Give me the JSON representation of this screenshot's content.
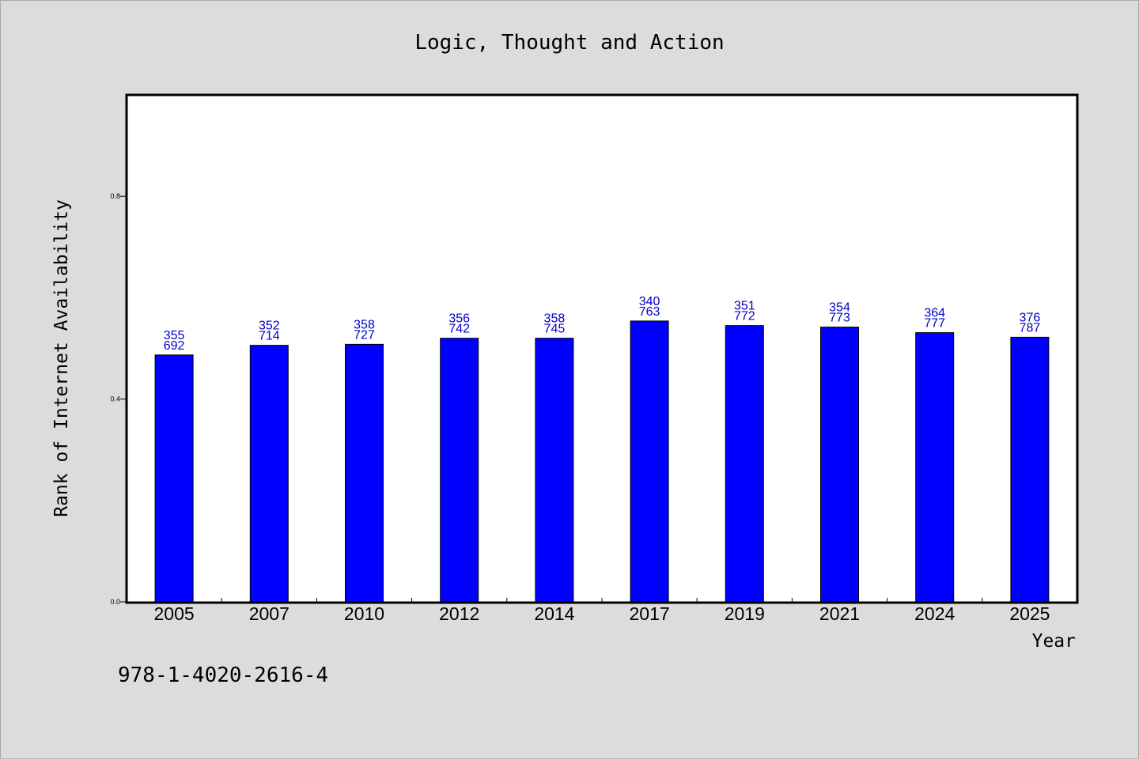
{
  "chart_data": {
    "type": "bar",
    "title": "Logic, Thought and Action",
    "xlabel": "Year",
    "ylabel": "Rank of Internet Availability",
    "categories": [
      "2005",
      "2007",
      "2010",
      "2012",
      "2014",
      "2017",
      "2019",
      "2021",
      "2024",
      "2025"
    ],
    "values": [
      0.487,
      0.506,
      0.508,
      0.52,
      0.52,
      0.554,
      0.545,
      0.542,
      0.531,
      0.522
    ],
    "data_labels": [
      [
        "355",
        "692"
      ],
      [
        "352",
        "714"
      ],
      [
        "358",
        "727"
      ],
      [
        "356",
        "742"
      ],
      [
        "358",
        "745"
      ],
      [
        "340",
        "763"
      ],
      [
        "351",
        "772"
      ],
      [
        "354",
        "773"
      ],
      [
        "364",
        "777"
      ],
      [
        "376",
        "787"
      ]
    ],
    "yticks": [
      "0.0",
      "0.4",
      "0.8"
    ],
    "ytick_values": [
      0.0,
      0.4,
      0.8
    ],
    "ylim": [
      0,
      1.0
    ],
    "grid": false,
    "legend": "none",
    "colors": {
      "bar": "#0000ff",
      "data_label": "#0000c8",
      "background": "#dcdcdc",
      "plot_background": "#ffffff"
    }
  },
  "footer": {
    "isbn": "978-1-4020-2616-4"
  }
}
